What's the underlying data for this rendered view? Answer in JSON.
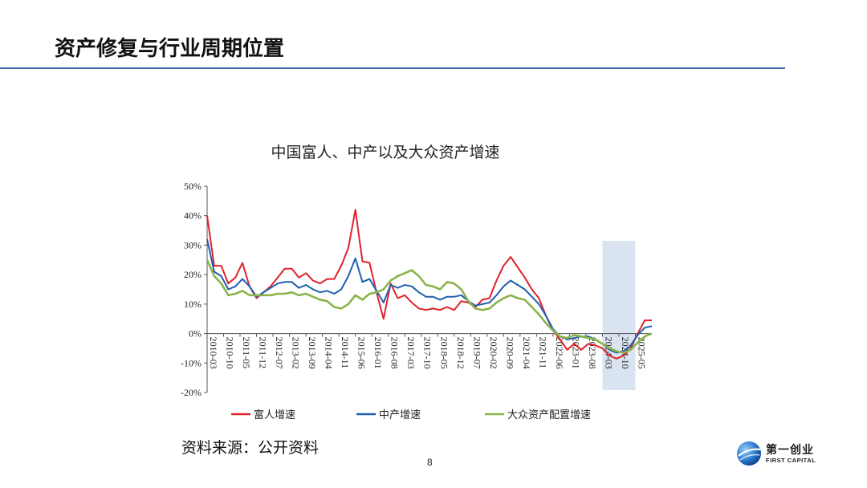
{
  "slide": {
    "title": "资产修复与行业周期位置",
    "source": "资料来源：公开资料",
    "page_number": "8",
    "logo": {
      "name_cn": "第一创业",
      "name_en": "FIRST CAPITAL"
    }
  },
  "colors": {
    "accent_rule": "#3a6ea5",
    "highlight": "#d6e1ee"
  },
  "chart_data": {
    "type": "line",
    "title": "中国富人、中产以及大众资产增速",
    "xlabel": "",
    "ylabel": "",
    "ylim": [
      -20,
      50
    ],
    "yticks": [
      "50%",
      "40%",
      "30%",
      "20%",
      "10%",
      "0%",
      "-10%",
      "-20%"
    ],
    "ytick_values": [
      50,
      40,
      30,
      20,
      10,
      0,
      -10,
      -20
    ],
    "xticks": [
      "2010-03",
      "2010-10",
      "2011-05",
      "2011-12",
      "2012-07",
      "2013-02",
      "2013-09",
      "2014-04",
      "2014-11",
      "2015-06",
      "2016-01",
      "2016-08",
      "2017-03",
      "2017-10",
      "2018-05",
      "2018-12",
      "2019-07",
      "2020-02",
      "2020-09",
      "2021-04",
      "2021-11",
      "2022-06",
      "2023-01",
      "2023-08",
      "2024-03",
      "2024-10",
      "2025-05"
    ],
    "x_start": "2010-03",
    "x_step_months": 3,
    "highlight_period": [
      "2024-03",
      "2025-05"
    ],
    "legend_position": "bottom",
    "grid": false,
    "series": [
      {
        "name": "富人增速",
        "color": "#e0222a",
        "values": [
          40,
          23,
          23,
          17,
          19,
          24,
          16,
          12,
          14,
          16,
          19,
          22,
          22,
          19,
          20.5,
          18,
          17,
          18.5,
          18.5,
          23,
          29,
          42,
          24.5,
          24,
          14,
          5,
          17,
          12,
          13,
          10.5,
          8.5,
          8,
          8.5,
          8,
          9,
          8,
          11,
          10.5,
          9,
          11.5,
          12,
          18,
          23,
          26,
          22.5,
          19,
          15,
          12,
          6,
          1,
          -2,
          -5.5,
          -3.5,
          -5.5,
          -3.5,
          -4,
          -5,
          -7.5,
          -8.5,
          -7.5,
          -5,
          0,
          4.5,
          4.5
        ]
      },
      {
        "name": "中产增速",
        "color": "#1f5fb0",
        "values": [
          32,
          21,
          19.5,
          15,
          16,
          18.5,
          16,
          12.5,
          14,
          15.5,
          17,
          17.5,
          17.5,
          15.5,
          16.5,
          15,
          14,
          14.5,
          13.5,
          15,
          19.5,
          25.5,
          17.5,
          18.5,
          14.5,
          10.5,
          16.5,
          15.5,
          16.5,
          16,
          14,
          12.5,
          12.5,
          11.5,
          12.5,
          12.5,
          13,
          11,
          9.5,
          10,
          10.5,
          13,
          16,
          18,
          16.5,
          15,
          12.5,
          10,
          6,
          1.5,
          -1,
          -2,
          -1.5,
          -1,
          -1,
          -2,
          -3.5,
          -5.5,
          -6.5,
          -6,
          -4,
          -0.5,
          2,
          2.5
        ]
      },
      {
        "name": "大众资产配置增速",
        "color": "#8ab44a",
        "values": [
          25,
          19.5,
          17,
          13,
          13.5,
          14.5,
          13,
          13,
          13,
          13,
          13.5,
          13.5,
          14,
          13,
          13.5,
          12.5,
          11.5,
          11,
          9,
          8.5,
          10,
          13,
          11.5,
          13.5,
          14,
          15,
          18,
          19.5,
          20.5,
          21.5,
          19.5,
          16.5,
          16,
          15,
          17.5,
          17,
          15,
          11,
          8.5,
          8,
          8.5,
          10.5,
          12,
          13,
          12,
          11.5,
          9,
          6.5,
          3.5,
          1,
          -1,
          -1.5,
          -0.5,
          -1,
          -1.5,
          -2,
          -3.5,
          -5,
          -6,
          -6.5,
          -5.5,
          -3,
          -1,
          0
        ]
      }
    ]
  }
}
